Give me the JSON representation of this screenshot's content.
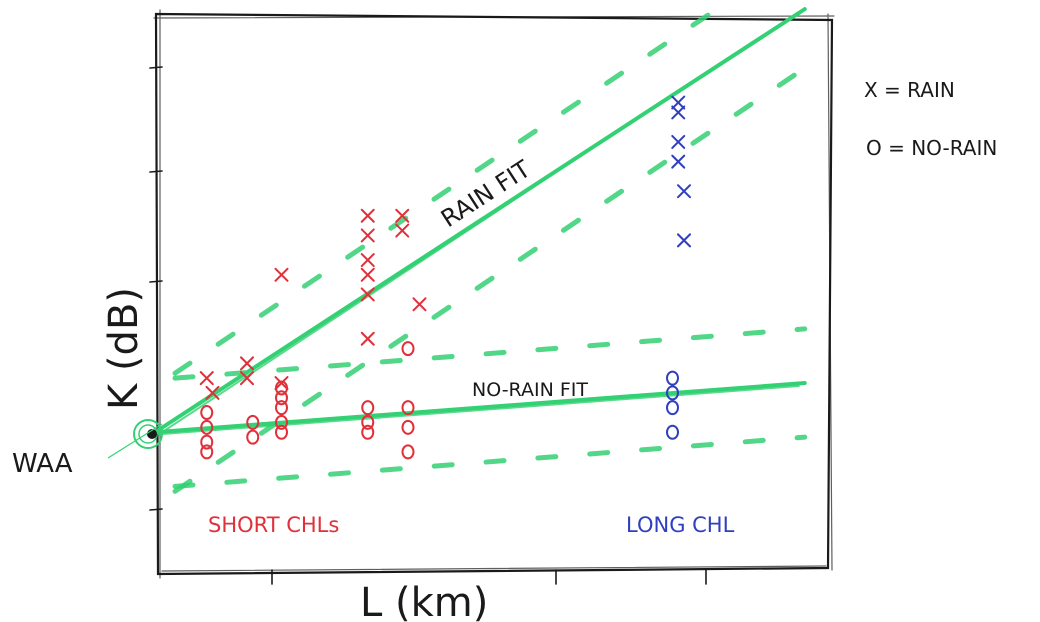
{
  "chart_data": {
    "type": "scatter",
    "title": "",
    "xlabel": "L (km)",
    "ylabel": "K (dB)",
    "xlim": [
      0,
      10
    ],
    "ylim": [
      0,
      10
    ],
    "intercept_label": "WAA",
    "legend": {
      "placement": "right-outside",
      "entries": [
        {
          "marker": "x",
          "label": "X = RAIN"
        },
        {
          "marker": "o",
          "label": "O = NO-RAIN"
        }
      ]
    },
    "group_labels": [
      {
        "text": "SHORT CHLs",
        "color": "#e0303a",
        "x": 2.2,
        "y": 1.1
      },
      {
        "text": "LONG CHL",
        "color": "#2f3fbf",
        "x": 8.1,
        "y": 1.1
      }
    ],
    "series": [
      {
        "name": "RAIN",
        "marker": "x",
        "color": "#e0303a",
        "points": [
          [
            0.9,
            3.9
          ],
          [
            1.0,
            3.6
          ],
          [
            1.6,
            4.2
          ],
          [
            1.6,
            3.9
          ],
          [
            2.2,
            6.0
          ],
          [
            2.2,
            3.8
          ],
          [
            3.7,
            7.2
          ],
          [
            3.7,
            6.8
          ],
          [
            3.7,
            6.3
          ],
          [
            3.7,
            6.0
          ],
          [
            3.7,
            5.6
          ],
          [
            3.7,
            4.7
          ],
          [
            4.3,
            7.2
          ],
          [
            4.3,
            6.9
          ],
          [
            4.6,
            5.4
          ]
        ]
      },
      {
        "name": "RAIN",
        "marker": "x",
        "color": "#2f3fbf",
        "points": [
          [
            9.1,
            9.5
          ],
          [
            9.1,
            9.3
          ],
          [
            9.1,
            8.7
          ],
          [
            9.1,
            8.3
          ],
          [
            9.2,
            7.7
          ],
          [
            9.2,
            6.7
          ]
        ]
      },
      {
        "name": "NO-RAIN",
        "marker": "o",
        "color": "#e0303a",
        "points": [
          [
            0.9,
            3.2
          ],
          [
            0.9,
            2.9
          ],
          [
            0.9,
            2.6
          ],
          [
            0.9,
            2.4
          ],
          [
            1.7,
            3.0
          ],
          [
            1.7,
            2.7
          ],
          [
            2.2,
            3.7
          ],
          [
            2.2,
            3.5
          ],
          [
            2.2,
            3.3
          ],
          [
            2.2,
            3.0
          ],
          [
            2.2,
            2.8
          ],
          [
            3.7,
            3.3
          ],
          [
            3.7,
            3.0
          ],
          [
            3.7,
            2.8
          ],
          [
            4.4,
            4.5
          ],
          [
            4.4,
            3.3
          ],
          [
            4.4,
            2.9
          ],
          [
            4.4,
            2.4
          ]
        ]
      },
      {
        "name": "NO-RAIN",
        "marker": "o",
        "color": "#2f3fbf",
        "points": [
          [
            9.0,
            3.9
          ],
          [
            9.0,
            3.6
          ],
          [
            9.0,
            3.3
          ],
          [
            9.0,
            2.8
          ]
        ]
      }
    ],
    "fits": [
      {
        "label": "RAIN FIT",
        "color": "#33d173",
        "from": [
          0,
          2.8
        ],
        "to": [
          11.3,
          11.4
        ],
        "band": 1.2
      },
      {
        "label": "NO-RAIN FIT",
        "color": "#33d173",
        "from": [
          0,
          2.8
        ],
        "to": [
          11.3,
          3.8
        ],
        "band": 1.1
      }
    ],
    "grid": false
  }
}
